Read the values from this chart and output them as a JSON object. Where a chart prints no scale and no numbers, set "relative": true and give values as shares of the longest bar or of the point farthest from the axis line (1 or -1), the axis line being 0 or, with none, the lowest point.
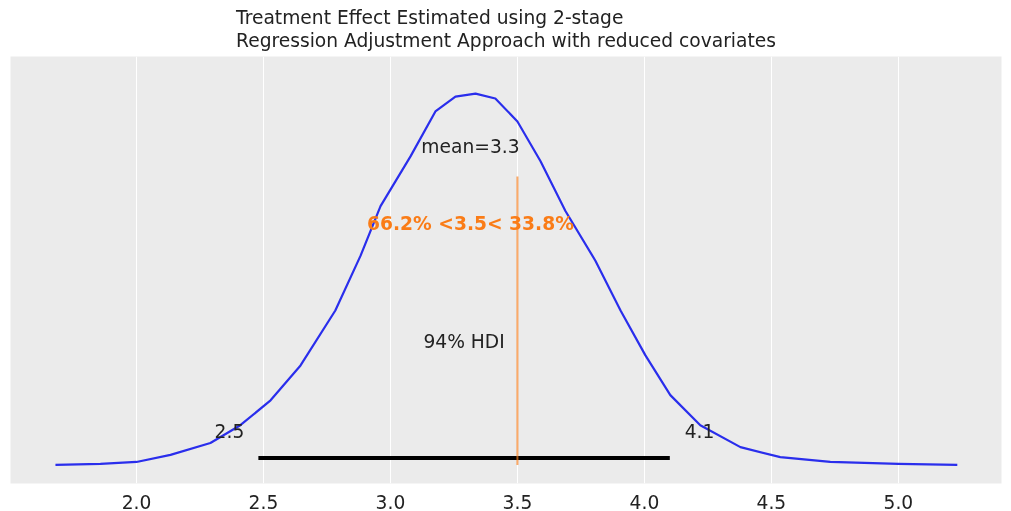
{
  "chart_data": {
    "type": "line",
    "title": "Treatment Effect Estimated using 2-stage\nRegression Adjustment Approach with reduced covariates",
    "relative": true,
    "grid": "x",
    "xlim": [
      1.504,
      5.406
    ],
    "xticks": [
      {
        "value": 2.0,
        "label": "2.0"
      },
      {
        "value": 2.5,
        "label": "2.5"
      },
      {
        "value": 3.0,
        "label": "3.0"
      },
      {
        "value": 3.5,
        "label": "3.5"
      },
      {
        "value": 4.0,
        "label": "4.0"
      },
      {
        "value": 4.5,
        "label": "4.5"
      },
      {
        "value": 5.0,
        "label": "5.0"
      }
    ],
    "tick_labels": "x",
    "series": [
      {
        "color": "#2a2eec",
        "x": [
          1.681,
          1.858,
          2.0,
          2.134,
          2.291,
          2.409,
          2.528,
          2.646,
          2.783,
          2.882,
          2.961,
          3.079,
          3.177,
          3.256,
          3.335,
          3.413,
          3.5,
          3.591,
          3.689,
          3.807,
          3.906,
          4.004,
          4.102,
          4.22,
          4.378,
          4.535,
          4.732,
          5.0,
          5.232
        ],
        "values": [
          0,
          0.003,
          0.008,
          0.027,
          0.059,
          0.107,
          0.174,
          0.268,
          0.416,
          0.563,
          0.697,
          0.831,
          0.952,
          0.992,
          1,
          0.987,
          0.925,
          0.818,
          0.684,
          0.55,
          0.416,
          0.295,
          0.188,
          0.107,
          0.048,
          0.021,
          0.008,
          0.003,
          0
        ]
      },
      {
        "color": "#000000",
        "x": [
          2.48,
          4.1
        ],
        "values": [
          0.019,
          0.019
        ]
      }
    ],
    "ref_lines": [
      {
        "axis": "x",
        "value": 3.5,
        "label": "66.2% <3.5< 33.8%",
        "color": "#fa7c17"
      }
    ],
    "annotations": [
      "mean=3.3",
      "94% HDI",
      {
        "text": "2.5",
        "x": 2.366,
        "y": 0.091
      },
      {
        "text": "4.1",
        "x": 4.217,
        "y": 0.091
      }
    ]
  }
}
